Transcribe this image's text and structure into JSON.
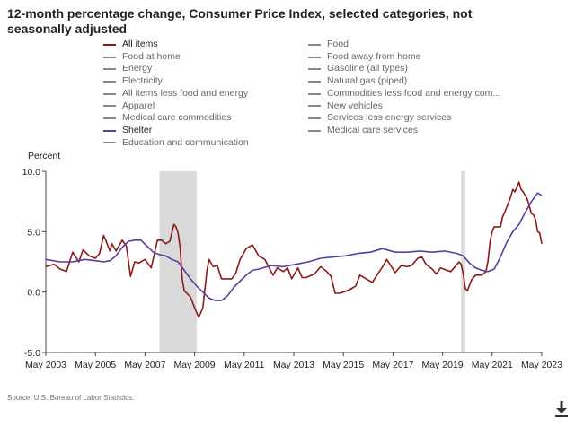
{
  "chart_data": {
    "type": "line",
    "title": "12-month percentage change, Consumer Price Index, selected categories, not seasonally adjusted",
    "ylabel": "Percent",
    "xlabel": "",
    "ylim": [
      -5.0,
      10.0
    ],
    "xlim": [
      "2003-05",
      "2023-05"
    ],
    "y_ticks": [
      "10.0",
      "5.0",
      "0.0",
      "-5.0"
    ],
    "x_ticks": [
      "May 2003",
      "May 2005",
      "May 2007",
      "May 2009",
      "May 2011",
      "May 2013",
      "May 2015",
      "May 2017",
      "May 2019",
      "May 2021",
      "May 2023"
    ],
    "grid": false,
    "legend_position": "top",
    "legend": [
      {
        "label": "All items",
        "active": true,
        "color": "#8b1a1a"
      },
      {
        "label": "Food",
        "active": false,
        "color": "#888888"
      },
      {
        "label": "Food at home",
        "active": false,
        "color": "#888888"
      },
      {
        "label": "Food away from home",
        "active": false,
        "color": "#888888"
      },
      {
        "label": "Energy",
        "active": false,
        "color": "#888888"
      },
      {
        "label": "Gasoline (all types)",
        "active": false,
        "color": "#888888"
      },
      {
        "label": "Electricity",
        "active": false,
        "color": "#888888"
      },
      {
        "label": "Natural gas (piped)",
        "active": false,
        "color": "#888888"
      },
      {
        "label": "All items less food and energy",
        "active": false,
        "color": "#888888"
      },
      {
        "label": "Commodities less food and energy com...",
        "active": false,
        "color": "#888888"
      },
      {
        "label": "Apparel",
        "active": false,
        "color": "#888888"
      },
      {
        "label": "New vehicles",
        "active": false,
        "color": "#888888"
      },
      {
        "label": "Medical care commodities",
        "active": false,
        "color": "#888888"
      },
      {
        "label": "Services less energy services",
        "active": false,
        "color": "#888888"
      },
      {
        "label": "Shelter",
        "active": true,
        "color": "#5b3d9a"
      },
      {
        "label": "Medical care services",
        "active": false,
        "color": "#888888"
      },
      {
        "label": "Education and communication",
        "active": false,
        "color": "#888888"
      }
    ],
    "recessions": [
      {
        "start": "2007-12",
        "end": "2009-06"
      },
      {
        "start": "2020-02",
        "end": "2020-04"
      }
    ],
    "series": [
      {
        "name": "All items",
        "color": "#8b1a1a",
        "points": [
          [
            "2003-05",
            2.1
          ],
          [
            "2003-09",
            2.3
          ],
          [
            "2003-12",
            1.9
          ],
          [
            "2004-03",
            1.7
          ],
          [
            "2004-06",
            3.3
          ],
          [
            "2004-09",
            2.5
          ],
          [
            "2004-11",
            3.5
          ],
          [
            "2005-02",
            3.0
          ],
          [
            "2005-05",
            2.8
          ],
          [
            "2005-07",
            3.2
          ],
          [
            "2005-09",
            4.7
          ],
          [
            "2005-10",
            4.3
          ],
          [
            "2005-12",
            3.4
          ],
          [
            "2006-01",
            4.0
          ],
          [
            "2006-03",
            3.4
          ],
          [
            "2006-06",
            4.3
          ],
          [
            "2006-08",
            3.8
          ],
          [
            "2006-10",
            1.3
          ],
          [
            "2006-12",
            2.5
          ],
          [
            "2007-02",
            2.4
          ],
          [
            "2007-05",
            2.7
          ],
          [
            "2007-08",
            2.0
          ],
          [
            "2007-10",
            3.5
          ],
          [
            "2007-11",
            4.3
          ],
          [
            "2008-01",
            4.3
          ],
          [
            "2008-03",
            4.0
          ],
          [
            "2008-05",
            4.2
          ],
          [
            "2008-07",
            5.6
          ],
          [
            "2008-08",
            5.4
          ],
          [
            "2008-09",
            4.9
          ],
          [
            "2008-10",
            3.7
          ],
          [
            "2008-11",
            1.1
          ],
          [
            "2008-12",
            0.1
          ],
          [
            "2009-03",
            -0.4
          ],
          [
            "2009-05",
            -1.3
          ],
          [
            "2009-07",
            -2.1
          ],
          [
            "2009-09",
            -1.3
          ],
          [
            "2009-11",
            1.8
          ],
          [
            "2009-12",
            2.7
          ],
          [
            "2010-02",
            2.1
          ],
          [
            "2010-04",
            2.2
          ],
          [
            "2010-06",
            1.1
          ],
          [
            "2010-09",
            1.1
          ],
          [
            "2010-11",
            1.1
          ],
          [
            "2011-01",
            1.6
          ],
          [
            "2011-03",
            2.7
          ],
          [
            "2011-06",
            3.6
          ],
          [
            "2011-09",
            3.9
          ],
          [
            "2011-12",
            3.0
          ],
          [
            "2012-03",
            2.7
          ],
          [
            "2012-06",
            1.7
          ],
          [
            "2012-07",
            1.4
          ],
          [
            "2012-09",
            2.0
          ],
          [
            "2012-12",
            1.7
          ],
          [
            "2013-02",
            2.0
          ],
          [
            "2013-04",
            1.1
          ],
          [
            "2013-07",
            2.0
          ],
          [
            "2013-09",
            1.2
          ],
          [
            "2013-11",
            1.2
          ],
          [
            "2014-03",
            1.5
          ],
          [
            "2014-06",
            2.1
          ],
          [
            "2014-09",
            1.7
          ],
          [
            "2014-11",
            1.3
          ],
          [
            "2015-01",
            -0.1
          ],
          [
            "2015-03",
            -0.1
          ],
          [
            "2015-05",
            0.0
          ],
          [
            "2015-08",
            0.2
          ],
          [
            "2015-11",
            0.5
          ],
          [
            "2016-01",
            1.4
          ],
          [
            "2016-04",
            1.1
          ],
          [
            "2016-07",
            0.8
          ],
          [
            "2016-10",
            1.6
          ],
          [
            "2016-12",
            2.1
          ],
          [
            "2017-02",
            2.7
          ],
          [
            "2017-05",
            1.9
          ],
          [
            "2017-06",
            1.6
          ],
          [
            "2017-09",
            2.2
          ],
          [
            "2017-12",
            2.1
          ],
          [
            "2018-02",
            2.2
          ],
          [
            "2018-05",
            2.8
          ],
          [
            "2018-07",
            2.9
          ],
          [
            "2018-09",
            2.3
          ],
          [
            "2018-12",
            1.9
          ],
          [
            "2019-02",
            1.5
          ],
          [
            "2019-04",
            2.0
          ],
          [
            "2019-07",
            1.8
          ],
          [
            "2019-09",
            1.7
          ],
          [
            "2019-12",
            2.3
          ],
          [
            "2020-01",
            2.5
          ],
          [
            "2020-02",
            2.3
          ],
          [
            "2020-03",
            1.5
          ],
          [
            "2020-04",
            0.3
          ],
          [
            "2020-05",
            0.1
          ],
          [
            "2020-07",
            1.0
          ],
          [
            "2020-09",
            1.4
          ],
          [
            "2020-12",
            1.4
          ],
          [
            "2021-02",
            1.7
          ],
          [
            "2021-03",
            2.6
          ],
          [
            "2021-04",
            4.2
          ],
          [
            "2021-05",
            5.0
          ],
          [
            "2021-06",
            5.4
          ],
          [
            "2021-09",
            5.4
          ],
          [
            "2021-10",
            6.2
          ],
          [
            "2021-12",
            7.0
          ],
          [
            "2022-02",
            7.9
          ],
          [
            "2022-03",
            8.5
          ],
          [
            "2022-04",
            8.3
          ],
          [
            "2022-06",
            9.1
          ],
          [
            "2022-07",
            8.5
          ],
          [
            "2022-08",
            8.3
          ],
          [
            "2022-10",
            7.7
          ],
          [
            "2022-12",
            6.5
          ],
          [
            "2023-01",
            6.4
          ],
          [
            "2023-02",
            6.0
          ],
          [
            "2023-03",
            5.0
          ],
          [
            "2023-04",
            4.9
          ],
          [
            "2023-05",
            4.0
          ]
        ]
      },
      {
        "name": "Shelter",
        "color": "#5b3d9a",
        "points": [
          [
            "2003-05",
            2.7
          ],
          [
            "2003-12",
            2.5
          ],
          [
            "2004-06",
            2.5
          ],
          [
            "2004-12",
            2.7
          ],
          [
            "2005-05",
            2.6
          ],
          [
            "2005-09",
            2.5
          ],
          [
            "2005-12",
            2.6
          ],
          [
            "2006-03",
            3.0
          ],
          [
            "2006-06",
            3.7
          ],
          [
            "2006-09",
            4.2
          ],
          [
            "2006-12",
            4.3
          ],
          [
            "2007-03",
            4.3
          ],
          [
            "2007-06",
            3.8
          ],
          [
            "2007-09",
            3.3
          ],
          [
            "2007-12",
            3.1
          ],
          [
            "2008-03",
            3.0
          ],
          [
            "2008-06",
            2.7
          ],
          [
            "2008-09",
            2.5
          ],
          [
            "2008-12",
            1.8
          ],
          [
            "2009-03",
            1.1
          ],
          [
            "2009-06",
            0.5
          ],
          [
            "2009-09",
            0.0
          ],
          [
            "2009-12",
            -0.5
          ],
          [
            "2010-03",
            -0.7
          ],
          [
            "2010-06",
            -0.7
          ],
          [
            "2010-09",
            -0.3
          ],
          [
            "2010-12",
            0.4
          ],
          [
            "2011-03",
            0.9
          ],
          [
            "2011-06",
            1.4
          ],
          [
            "2011-09",
            1.8
          ],
          [
            "2011-12",
            1.9
          ],
          [
            "2012-06",
            2.2
          ],
          [
            "2012-12",
            2.1
          ],
          [
            "2013-06",
            2.3
          ],
          [
            "2013-12",
            2.5
          ],
          [
            "2014-06",
            2.8
          ],
          [
            "2014-12",
            2.9
          ],
          [
            "2015-06",
            3.0
          ],
          [
            "2015-12",
            3.2
          ],
          [
            "2016-06",
            3.3
          ],
          [
            "2016-12",
            3.6
          ],
          [
            "2017-06",
            3.3
          ],
          [
            "2017-12",
            3.3
          ],
          [
            "2018-06",
            3.4
          ],
          [
            "2018-12",
            3.3
          ],
          [
            "2019-06",
            3.4
          ],
          [
            "2019-12",
            3.2
          ],
          [
            "2020-03",
            3.0
          ],
          [
            "2020-06",
            2.4
          ],
          [
            "2020-09",
            2.0
          ],
          [
            "2020-12",
            1.8
          ],
          [
            "2021-03",
            1.7
          ],
          [
            "2021-06",
            1.9
          ],
          [
            "2021-09",
            2.9
          ],
          [
            "2021-12",
            4.1
          ],
          [
            "2022-03",
            5.0
          ],
          [
            "2022-06",
            5.6
          ],
          [
            "2022-09",
            6.6
          ],
          [
            "2022-12",
            7.5
          ],
          [
            "2023-03",
            8.2
          ],
          [
            "2023-05",
            8.0
          ]
        ]
      }
    ]
  },
  "y_axis_title": "Percent",
  "source_note": "Source: U.S. Bureau of Labor Statistics.",
  "download_icon": "download-icon",
  "colors": {
    "recession_band": "#d9d9d9",
    "axis": "#444444",
    "inactive_legend_text": "#666666",
    "active_legend_text": "#222222"
  }
}
